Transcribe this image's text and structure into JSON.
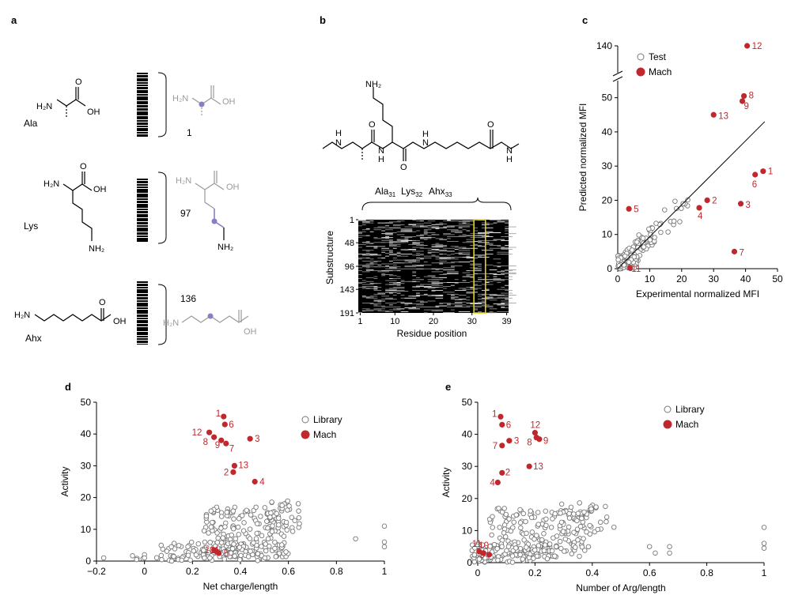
{
  "panel_labels": {
    "a": "a",
    "b": "b",
    "c": "c",
    "d": "d",
    "e": "e"
  },
  "panel_a": {
    "rows": [
      {
        "name": "Ala",
        "index": "1",
        "amine": "H₂N",
        "acid": "OH"
      },
      {
        "name": "Lys",
        "index": "97",
        "amine": "H₂N",
        "acid": "OH",
        "side_amine": "NH₂"
      },
      {
        "name": "Ahx",
        "index": "136",
        "amine": "H₂N",
        "acid": "OH"
      }
    ],
    "barcode_color": "#000000",
    "highlight_color": "#8e7cc3"
  },
  "panel_b": {
    "side_chain_label": "NH₂",
    "residues_label_parts": [
      {
        "base": "Ala",
        "sub": "31"
      },
      {
        "base": "Lys",
        "sub": "32"
      },
      {
        "base": "Ahx",
        "sub": "33"
      }
    ],
    "nh_labels": [
      "H",
      "N",
      "H",
      "N",
      "N",
      "H",
      "H",
      "N"
    ],
    "heatmap": {
      "type": "heatmap",
      "ylabel": "Substructure",
      "xlabel": "Residue position",
      "yticks": [
        "1",
        "48",
        "96",
        "143",
        "191"
      ],
      "xticks": [
        "1",
        "10",
        "20",
        "30",
        "39"
      ],
      "highlight_columns": [
        31,
        33
      ],
      "highlight_color": "#e6d317"
    }
  },
  "chart_data": [
    {
      "id": "c",
      "type": "scatter",
      "xlabel": "Experimental normalized MFI",
      "ylabel": "Predicted normalized MFI",
      "xlim": [
        0,
        50
      ],
      "ylim": [
        0,
        140
      ],
      "xticks": [
        "0",
        "10",
        "20",
        "30",
        "40",
        "50"
      ],
      "yticks": [
        "0",
        "10",
        "20",
        "30",
        "40",
        "50",
        "140"
      ],
      "legend": {
        "placement": "top-left",
        "entries": [
          "Test",
          "Mach"
        ]
      },
      "series": [
        {
          "name": "Mach",
          "color": "#c0282d",
          "points": [
            {
              "label": "1",
              "x": 45.5,
              "y": 28.5
            },
            {
              "label": "2",
              "x": 28,
              "y": 20
            },
            {
              "label": "3",
              "x": 38.5,
              "y": 19
            },
            {
              "label": "4",
              "x": 25.5,
              "y": 17.8
            },
            {
              "label": "5",
              "x": 3.5,
              "y": 17.5
            },
            {
              "label": "6",
              "x": 43,
              "y": 27.5
            },
            {
              "label": "7",
              "x": 36.5,
              "y": 5
            },
            {
              "label": "8",
              "x": 39.5,
              "y": 50.5
            },
            {
              "label": "9",
              "x": 39,
              "y": 49
            },
            {
              "label": "12",
              "x": 40.5,
              "y": 140
            },
            {
              "label": "13",
              "x": 30,
              "y": 45
            },
            {
              "label": "11",
              "x": 3.8,
              "y": 0.2
            }
          ]
        }
      ],
      "fit_line": {
        "x": [
          0,
          46
        ],
        "y": [
          0,
          43
        ]
      }
    },
    {
      "id": "d",
      "type": "scatter",
      "xlabel": "Net charge/length",
      "ylabel": "Activity",
      "xlim": [
        -0.2,
        1
      ],
      "ylim": [
        0,
        50
      ],
      "xticks": [
        "−0.2",
        "0",
        "0.2",
        "0.4",
        "0.6",
        "0.8",
        "1"
      ],
      "yticks": [
        "0",
        "10",
        "20",
        "30",
        "40",
        "50"
      ],
      "legend": {
        "placement": "top-right",
        "entries": [
          "Library",
          "Mach"
        ]
      },
      "series": [
        {
          "name": "Mach",
          "color": "#c0282d",
          "points": [
            {
              "label": "1",
              "x": 0.33,
              "y": 45.5
            },
            {
              "label": "6",
              "x": 0.335,
              "y": 43
            },
            {
              "label": "12",
              "x": 0.27,
              "y": 40.5
            },
            {
              "label": "8",
              "x": 0.29,
              "y": 39
            },
            {
              "label": "9",
              "x": 0.32,
              "y": 38
            },
            {
              "label": "7",
              "x": 0.34,
              "y": 37
            },
            {
              "label": "3",
              "x": 0.44,
              "y": 38.5
            },
            {
              "label": "13",
              "x": 0.375,
              "y": 30
            },
            {
              "label": "2",
              "x": 0.37,
              "y": 28
            },
            {
              "label": "4",
              "x": 0.46,
              "y": 25
            },
            {
              "label": "10",
              "x": 0.29,
              "y": 3.5
            },
            {
              "label": "11",
              "x": 0.3,
              "y": 3
            },
            {
              "label": "5",
              "x": 0.31,
              "y": 2.5
            }
          ]
        }
      ]
    },
    {
      "id": "e",
      "type": "scatter",
      "xlabel": "Number of Arg/length",
      "ylabel": "Activity",
      "xlim": [
        0,
        1
      ],
      "ylim": [
        0,
        50
      ],
      "xticks": [
        "0",
        "0.2",
        "0.4",
        "0.6",
        "0.8",
        "1"
      ],
      "yticks": [
        "0",
        "10",
        "20",
        "30",
        "40",
        "50"
      ],
      "legend": {
        "placement": "top-right",
        "entries": [
          "Library",
          "Mach"
        ]
      },
      "series": [
        {
          "name": "Mach",
          "color": "#c0282d",
          "points": [
            {
              "label": "1",
              "x": 0.08,
              "y": 45.5
            },
            {
              "label": "6",
              "x": 0.085,
              "y": 43
            },
            {
              "label": "12",
              "x": 0.2,
              "y": 40.5
            },
            {
              "label": "8",
              "x": 0.205,
              "y": 39
            },
            {
              "label": "9",
              "x": 0.215,
              "y": 38.5
            },
            {
              "label": "3",
              "x": 0.11,
              "y": 38
            },
            {
              "label": "7",
              "x": 0.085,
              "y": 36.5
            },
            {
              "label": "13",
              "x": 0.18,
              "y": 30
            },
            {
              "label": "2",
              "x": 0.085,
              "y": 28
            },
            {
              "label": "4",
              "x": 0.07,
              "y": 25
            },
            {
              "label": "11",
              "x": 0.005,
              "y": 3.5
            },
            {
              "label": "10",
              "x": 0.02,
              "y": 3
            },
            {
              "label": "5",
              "x": 0.04,
              "y": 2.5
            }
          ]
        }
      ]
    }
  ],
  "colors": {
    "mach": "#c0282d",
    "library": "#777777",
    "test": "#777777",
    "axis": "#000000"
  }
}
